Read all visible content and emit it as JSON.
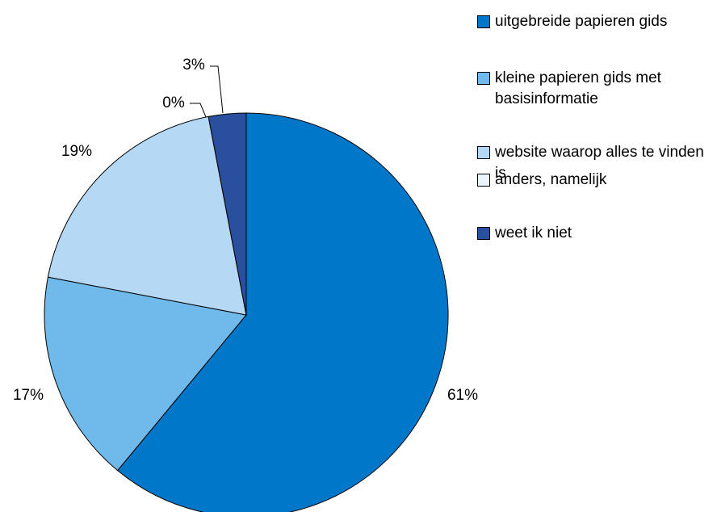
{
  "chart_data": {
    "type": "pie",
    "categories": [
      "uitgebreide papieren gids",
      "kleine papieren gids met basisinformatie",
      "website waarop alles te vinden is",
      "anders, namelijk",
      "weet ik niet"
    ],
    "values": [
      61,
      17,
      19,
      0,
      3
    ],
    "value_labels": [
      "61%",
      "17%",
      "19%",
      "0%",
      "3%"
    ],
    "colors": [
      "#0077c8",
      "#6fbaea",
      "#b5d9f4",
      "#eaf4fc",
      "#2b4f9f"
    ],
    "legend": "right"
  }
}
